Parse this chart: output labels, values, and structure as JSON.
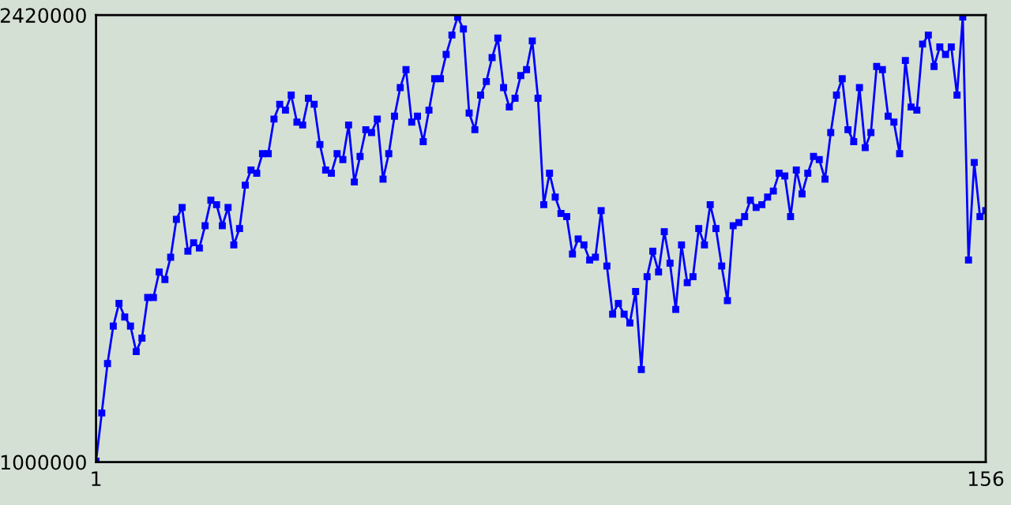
{
  "chart_data": {
    "type": "line",
    "x": [
      1,
      2,
      3,
      4,
      5,
      6,
      7,
      8,
      9,
      10,
      11,
      12,
      13,
      14,
      15,
      16,
      17,
      18,
      19,
      20,
      21,
      22,
      23,
      24,
      25,
      26,
      27,
      28,
      29,
      30,
      31,
      32,
      33,
      34,
      35,
      36,
      37,
      38,
      39,
      40,
      41,
      42,
      43,
      44,
      45,
      46,
      47,
      48,
      49,
      50,
      51,
      52,
      53,
      54,
      55,
      56,
      57,
      58,
      59,
      60,
      61,
      62,
      63,
      64,
      65,
      66,
      67,
      68,
      69,
      70,
      71,
      72,
      73,
      74,
      75,
      76,
      77,
      78,
      79,
      80,
      81,
      82,
      83,
      84,
      85,
      86,
      87,
      88,
      89,
      90,
      91,
      92,
      93,
      94,
      95,
      96,
      97,
      98,
      99,
      100,
      101,
      102,
      103,
      104,
      105,
      106,
      107,
      108,
      109,
      110,
      111,
      112,
      113,
      114,
      115,
      116,
      117,
      118,
      119,
      120,
      121,
      122,
      123,
      124,
      125,
      126,
      127,
      128,
      129,
      130,
      131,
      132,
      133,
      134,
      135,
      136,
      137,
      138,
      139,
      140,
      141,
      142,
      143,
      144,
      145,
      146,
      147,
      148,
      149,
      150,
      151,
      152,
      153,
      154,
      155,
      156
    ],
    "series": [
      {
        "color": "#0000ff",
        "values": [
          1003000,
          1156000,
          1313000,
          1432000,
          1504000,
          1461000,
          1432000,
          1351000,
          1394000,
          1523000,
          1523000,
          1604000,
          1580000,
          1651000,
          1771000,
          1809000,
          1670000,
          1697000,
          1680000,
          1751000,
          1832000,
          1818000,
          1751000,
          1809000,
          1690000,
          1742000,
          1880000,
          1928000,
          1918000,
          1980000,
          1980000,
          2090000,
          2137000,
          2118000,
          2166000,
          2080000,
          2071000,
          2156000,
          2137000,
          2009000,
          1928000,
          1918000,
          1980000,
          1961000,
          2071000,
          1890000,
          1971000,
          2056000,
          2047000,
          2090000,
          1899000,
          1980000,
          2099000,
          2190000,
          2247000,
          2080000,
          2099000,
          2018000,
          2118000,
          2218000,
          2218000,
          2295000,
          2357000,
          2414000,
          2376000,
          2109000,
          2056000,
          2166000,
          2209000,
          2285000,
          2347000,
          2190000,
          2128000,
          2156000,
          2228000,
          2247000,
          2338000,
          2156000,
          1818000,
          1918000,
          1842000,
          1790000,
          1780000,
          1661000,
          1709000,
          1690000,
          1642000,
          1651000,
          1799000,
          1623000,
          1470000,
          1504000,
          1470000,
          1442000,
          1542000,
          1294000,
          1589000,
          1670000,
          1604000,
          1732000,
          1632000,
          1485000,
          1690000,
          1570000,
          1589000,
          1742000,
          1690000,
          1818000,
          1742000,
          1623000,
          1513000,
          1751000,
          1761000,
          1780000,
          1832000,
          1809000,
          1818000,
          1842000,
          1861000,
          1918000,
          1909000,
          1780000,
          1928000,
          1852000,
          1918000,
          1971000,
          1961000,
          1899000,
          2047000,
          2166000,
          2218000,
          2056000,
          2018000,
          2190000,
          1999000,
          2047000,
          2257000,
          2247000,
          2099000,
          2080000,
          1980000,
          2276000,
          2128000,
          2118000,
          2328000,
          2357000,
          2257000,
          2319000,
          2295000,
          2319000,
          2166000,
          2414000,
          1642000,
          1952000,
          1780000,
          1799000
        ]
      }
    ],
    "xlim": [
      1,
      156
    ],
    "xticks": [
      1,
      156
    ],
    "ylim": [
      1000000,
      2420000
    ],
    "yticks": [
      1000000,
      2420000
    ],
    "marker": "square",
    "line_style": "solid"
  }
}
